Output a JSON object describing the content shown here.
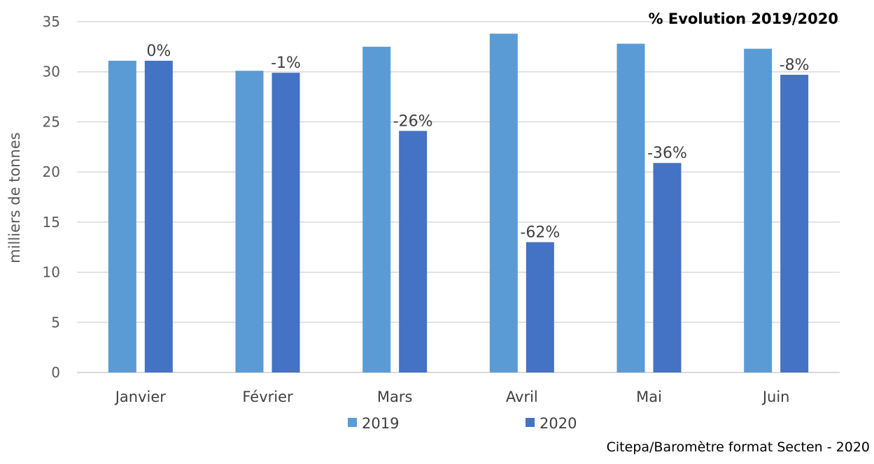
{
  "chart_data": {
    "type": "bar",
    "annotation": "% Evolution 2019/2020",
    "ylabel": "milliers de tonnes",
    "xlabel": "",
    "ylim": [
      0,
      35
    ],
    "yticks": [
      0,
      5,
      10,
      15,
      20,
      25,
      30,
      35
    ],
    "grid": true,
    "legend_position": "bottom",
    "categories": [
      "Janvier",
      "Février",
      "Mars",
      "Avril",
      "Mai",
      "Juin"
    ],
    "series": [
      {
        "name": "2019",
        "color": "#5b9bd5",
        "values": [
          31.1,
          30.1,
          32.5,
          33.8,
          32.8,
          32.3
        ]
      },
      {
        "name": "2020",
        "color": "#4472c4",
        "values": [
          31.1,
          29.9,
          24.1,
          13.0,
          20.9,
          29.7
        ]
      }
    ],
    "data_labels_series": "2020",
    "data_labels": [
      "0%",
      "-1%",
      "-26%",
      "-62%",
      "-36%",
      "-8%"
    ],
    "source": "Citepa/Baromètre format Secten - 2020"
  }
}
